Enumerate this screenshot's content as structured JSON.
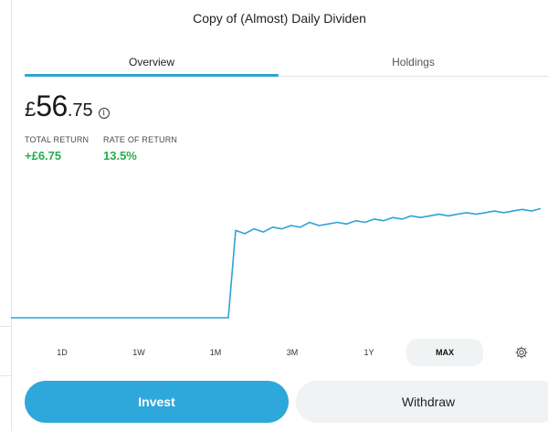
{
  "header": {
    "title": "Copy of (Almost) Daily Dividen"
  },
  "tabs": [
    {
      "label": "Overview",
      "active": true
    },
    {
      "label": "Holdings",
      "active": false
    }
  ],
  "portfolio": {
    "currency_symbol": "£",
    "value_major": "56",
    "value_minor": ".75",
    "info_icon": "info-icon"
  },
  "metrics": [
    {
      "label": "TOTAL RETURN",
      "value": "+£6.75"
    },
    {
      "label": "RATE OF RETURN",
      "value": "13.5%"
    }
  ],
  "periods": [
    {
      "label": "1D",
      "active": false
    },
    {
      "label": "1W",
      "active": false
    },
    {
      "label": "1M",
      "active": false
    },
    {
      "label": "3M",
      "active": false
    },
    {
      "label": "1Y",
      "active": false
    },
    {
      "label": "MAX",
      "active": true
    }
  ],
  "settings_icon": "gear-icon",
  "actions": {
    "invest_label": "Invest",
    "withdraw_label": "Withdraw"
  },
  "colors": {
    "accent": "#2ea7db",
    "positive": "#22b04a",
    "line": "#2fa3d4",
    "secondary_bg": "#f0f2f4"
  },
  "chart_data": {
    "type": "line",
    "series": [
      {
        "values": [
          50,
          50,
          50,
          50,
          50,
          50,
          50,
          50,
          50,
          50,
          50,
          50,
          50,
          50,
          50,
          50,
          50,
          50,
          50,
          50,
          55.4,
          55.2,
          55.5,
          55.3,
          55.6,
          55.5,
          55.7,
          55.6,
          55.9,
          55.7,
          55.8,
          55.9,
          55.8,
          56.0,
          55.9,
          56.1,
          56.0,
          56.2,
          56.1,
          56.3,
          56.2,
          56.3,
          56.4,
          56.3,
          56.4,
          56.5,
          56.4,
          56.5,
          56.6,
          56.5,
          56.6,
          56.7,
          56.6,
          56.75
        ]
      }
    ],
    "ylim": [
      50,
      57
    ],
    "grid": false
  }
}
